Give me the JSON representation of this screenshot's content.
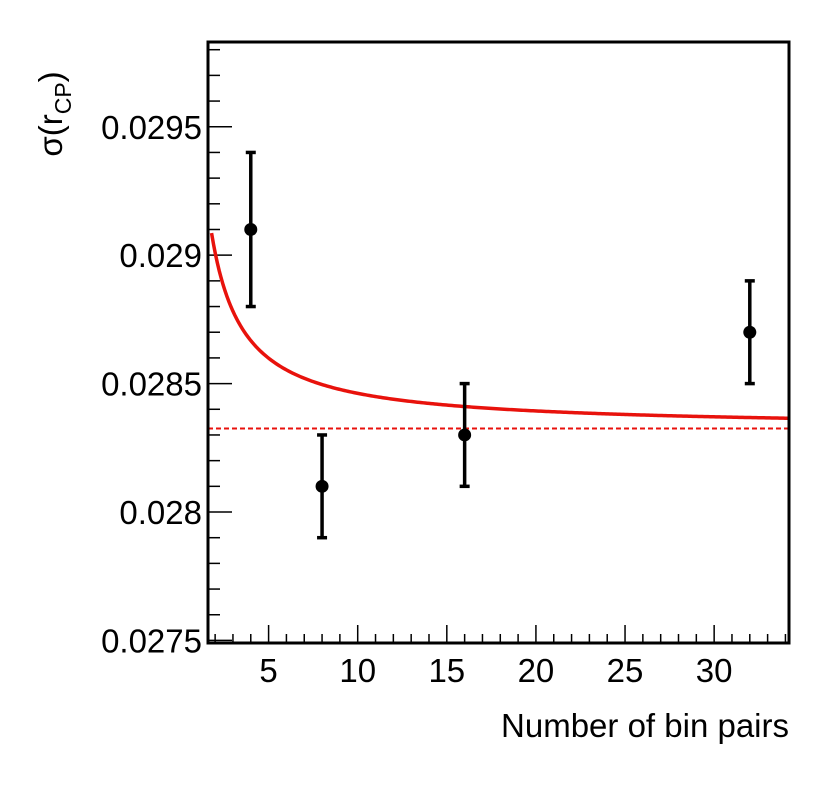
{
  "chart_data": {
    "type": "scatter",
    "title": "",
    "xlabel": "Number of bin pairs",
    "ylabel_main": "σ(r",
    "ylabel_sub": "CP",
    "ylabel_close": ")",
    "xlim": [
      1.6,
      34.2
    ],
    "ylim": [
      0.02749,
      0.02983
    ],
    "grid": false,
    "x_ticks": [
      5,
      10,
      15,
      20,
      25,
      30
    ],
    "x_tick_labels": [
      "5",
      "10",
      "15",
      "20",
      "25",
      "30"
    ],
    "x_minor_step": 1,
    "y_ticks": [
      0.0275,
      0.028,
      0.0285,
      0.029,
      0.0295
    ],
    "y_tick_labels": [
      "0.0275",
      "0.028",
      "0.0285",
      "0.029",
      "0.0295"
    ],
    "y_minor_step": 0.0001,
    "series": [
      {
        "kind": "points-with-errors",
        "color": "#000000",
        "points": [
          {
            "x": 4,
            "y": 0.0291,
            "err": 0.0003
          },
          {
            "x": 8,
            "y": 0.0281,
            "err": 0.0002
          },
          {
            "x": 16,
            "y": 0.0283,
            "err": 0.0002
          },
          {
            "x": 32,
            "y": 0.0287,
            "err": 0.0002
          }
        ]
      },
      {
        "kind": "fit-curve",
        "color": "#e8120c",
        "function": "a + b/x",
        "a": 0.028325,
        "b": 0.00137,
        "x_range": [
          1.8,
          34.2
        ]
      },
      {
        "kind": "asymptote",
        "style": "dashed",
        "color": "#e8120c",
        "y": 0.028325
      }
    ]
  }
}
